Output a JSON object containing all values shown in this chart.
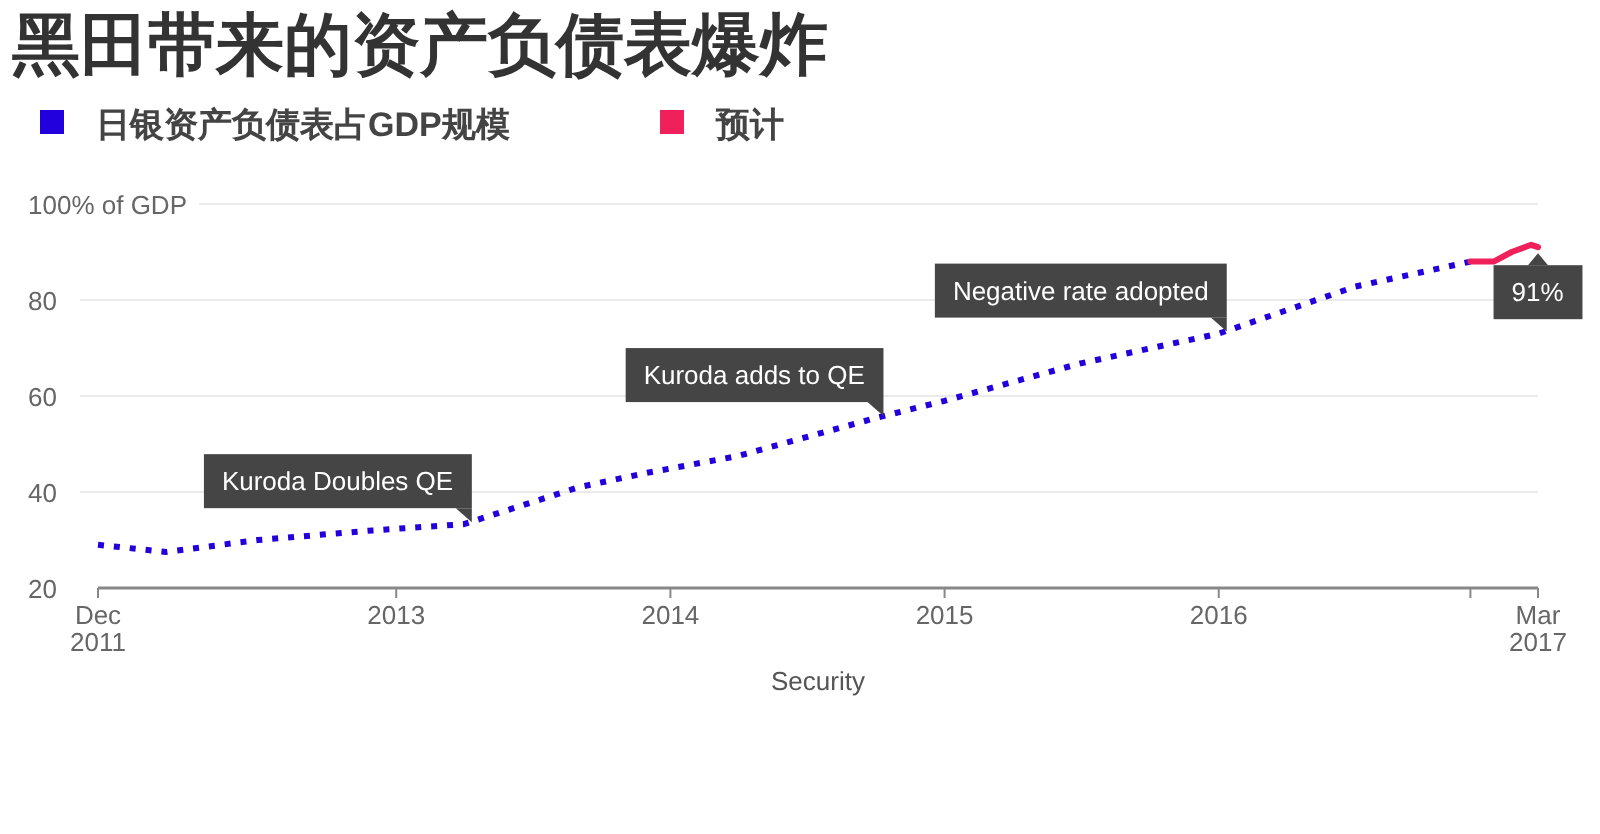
{
  "chart_data": {
    "type": "line",
    "title": "黑田带来的资产负债表爆炸",
    "xlabel": "Security",
    "series": [
      {
        "name": "日银资产负债表占GDP规模",
        "color": "#2200dd",
        "line_style": "dotted",
        "x": [
          "2011-12",
          "2012-03",
          "2012-07",
          "2012-12",
          "2013-04",
          "2013-09",
          "2013-12",
          "2014-04",
          "2014-10",
          "2015-01",
          "2015-07",
          "2016-01",
          "2016-07",
          "2016-12"
        ],
        "values": [
          29,
          27.5,
          30,
          32,
          33.3,
          41,
          44,
          47.5,
          55.4,
          59,
          66.8,
          73,
          82.8,
          88
        ]
      },
      {
        "name": "预计",
        "color": "#f0205a",
        "line_style": "solid",
        "x": [
          "2016-12",
          "2017-01-01",
          "2017-01-25",
          "2017-02-20",
          "2017-03"
        ],
        "values": [
          88,
          88,
          90,
          91.5,
          91
        ]
      }
    ],
    "xlim": [
      "2011-12",
      "2017-03"
    ],
    "xticks": [
      {
        "value": "2011-12",
        "label": "Dec\n2011"
      },
      {
        "value": "2013-01",
        "label": "2013"
      },
      {
        "value": "2014-01",
        "label": "2014"
      },
      {
        "value": "2015-01",
        "label": "2015"
      },
      {
        "value": "2016-01",
        "label": "2016"
      },
      {
        "value": "2016-12",
        "label": null
      },
      {
        "value": "2017-03",
        "label": "Mar\n2017"
      }
    ],
    "ylim": [
      20,
      100
    ],
    "yticks": [
      20,
      40,
      60,
      80,
      {
        "value": 100,
        "label": "100% of GDP"
      }
    ],
    "grid": "y",
    "legend": "top left",
    "annotations": [
      {
        "text": "Kuroda Doubles QE",
        "x": "2013-04",
        "y": 33.3
      },
      {
        "text": "Kuroda adds to QE",
        "x": "2014-10",
        "y": 55.4
      },
      {
        "text": "Negative rate adopted",
        "x": "2016-01",
        "y": 73
      },
      {
        "text": "91%",
        "x": "2017-03",
        "y": 91
      }
    ]
  }
}
